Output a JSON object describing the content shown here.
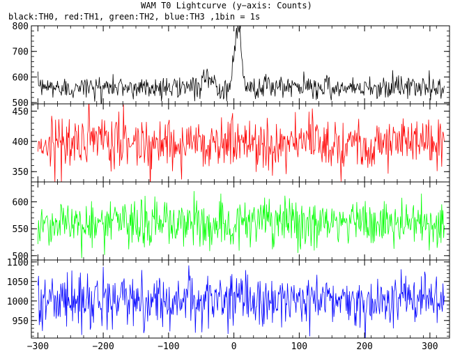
{
  "chart_data": {
    "type": "line",
    "title": "WAM T0 Lightcurve (y−axis: Counts)",
    "subtitle": "black:TH0, red:TH1, green:TH2, blue:TH3 ,1bin = 1s",
    "xlim": [
      -310,
      330
    ],
    "xticks": [
      -300,
      -200,
      -100,
      0,
      100,
      200,
      300
    ],
    "xtick_labels": [
      "−300",
      "−200",
      "−100",
      "0",
      "100",
      "200",
      "300"
    ],
    "bin_seconds": 1,
    "panels": [
      {
        "name": "TH0",
        "color": "#000000",
        "ylim": [
          495,
          800
        ],
        "yticks": [
          500,
          600,
          700,
          800
        ],
        "ytick_labels": [
          "500",
          "600",
          "700",
          "800"
        ],
        "baseline": 560,
        "noise_sd": 22,
        "features": [
          {
            "center": 6,
            "width": 5,
            "peak": 805
          },
          {
            "center": -38,
            "width": 6,
            "peak": 598
          }
        ]
      },
      {
        "name": "TH1",
        "color": "#ff0000",
        "ylim": [
          333,
          462
        ],
        "yticks": [
          350,
          400,
          450
        ],
        "ytick_labels": [
          "350",
          "400",
          "450"
        ],
        "baseline": 398,
        "noise_sd": 22,
        "features": []
      },
      {
        "name": "TH2",
        "color": "#00ff00",
        "ylim": [
          492,
          637
        ],
        "yticks": [
          500,
          550,
          600
        ],
        "ytick_labels": [
          "500",
          "550",
          "600"
        ],
        "baseline": 560,
        "noise_sd": 23,
        "features": []
      },
      {
        "name": "TH3",
        "color": "#0000ff",
        "ylim": [
          905,
          1105
        ],
        "yticks": [
          950,
          1000,
          1050,
          1100
        ],
        "ytick_labels": [
          "950",
          "1000",
          "1050",
          "1100"
        ],
        "baseline": 1002,
        "noise_sd": 33,
        "features": []
      }
    ]
  }
}
